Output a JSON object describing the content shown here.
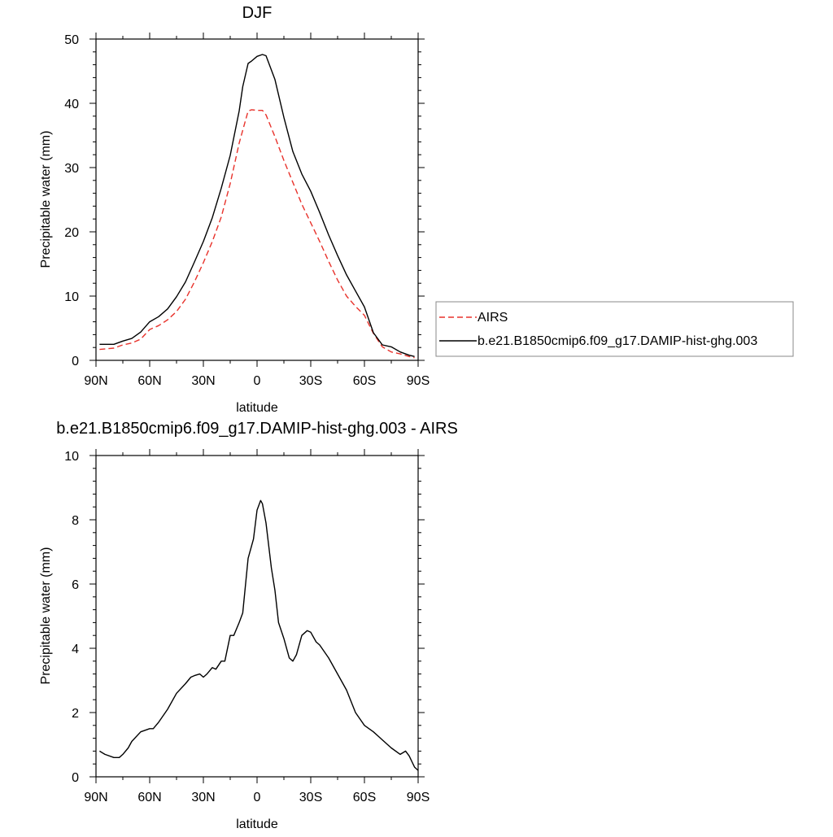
{
  "chart_data": [
    {
      "type": "line",
      "title": "DJF",
      "xlabel": "latitude",
      "ylabel": "Precipitable water (mm)",
      "xlim": [
        -90,
        90
      ],
      "ylim": [
        0,
        50
      ],
      "x_direction": "north-to-south",
      "xticks": [
        {
          "value": -90,
          "label": "90N"
        },
        {
          "value": -60,
          "label": "60N"
        },
        {
          "value": -30,
          "label": "30N"
        },
        {
          "value": 0,
          "label": "0"
        },
        {
          "value": 30,
          "label": "30S"
        },
        {
          "value": 60,
          "label": "60S"
        },
        {
          "value": 90,
          "label": "90S"
        }
      ],
      "yticks": [
        0,
        10,
        20,
        30,
        40,
        50
      ],
      "grid": false,
      "legend": {
        "placement": "right",
        "entries": [
          "AIRS",
          "b.e21.B1850cmip6.f09_g17.DAMIP-hist-ghg.003"
        ]
      },
      "series": [
        {
          "name": "AIRS",
          "color": "#e8322b",
          "dash": "dashed",
          "x": [
            -88,
            -80,
            -75,
            -70,
            -65,
            -60,
            -55,
            -50,
            -45,
            -40,
            -35,
            -30,
            -25,
            -20,
            -15,
            -10,
            -5,
            -3,
            0,
            3,
            5,
            10,
            15,
            20,
            25,
            30,
            35,
            40,
            45,
            50,
            55,
            60,
            65,
            70,
            75,
            80,
            85,
            88
          ],
          "values": [
            1.7,
            1.9,
            2.4,
            2.7,
            3.3,
            4.8,
            5.4,
            6.3,
            7.6,
            9.5,
            12.2,
            15.2,
            18.5,
            22.3,
            27.5,
            33.8,
            38.8,
            39.0,
            38.9,
            38.9,
            38.2,
            34.8,
            31.1,
            27.7,
            24.3,
            21.4,
            18.5,
            15.4,
            12.5,
            10.0,
            8.4,
            7.0,
            4.2,
            2.1,
            1.3,
            1.0,
            0.6,
            0.4
          ]
        },
        {
          "name": "b.e21.B1850cmip6.f09_g17.DAMIP-hist-ghg.003",
          "color": "#000000",
          "dash": "solid",
          "x": [
            -88,
            -80,
            -75,
            -70,
            -65,
            -60,
            -55,
            -50,
            -45,
            -40,
            -35,
            -30,
            -25,
            -20,
            -15,
            -10,
            -8,
            -5,
            -3,
            0,
            3,
            5,
            10,
            15,
            20,
            25,
            30,
            35,
            40,
            45,
            50,
            55,
            60,
            65,
            70,
            75,
            80,
            85,
            88
          ],
          "values": [
            2.5,
            2.5,
            3.0,
            3.4,
            4.4,
            6.0,
            6.8,
            8.0,
            9.9,
            12.2,
            15.3,
            18.5,
            22.2,
            26.8,
            31.9,
            38.8,
            42.6,
            46.2,
            46.6,
            47.3,
            47.6,
            47.4,
            43.7,
            37.8,
            32.5,
            29.0,
            26.3,
            23.0,
            19.5,
            16.3,
            13.3,
            10.8,
            8.3,
            4.3,
            2.4,
            2.1,
            1.3,
            0.8,
            0.6
          ]
        }
      ]
    },
    {
      "type": "line",
      "title": "b.e21.B1850cmip6.f09_g17.DAMIP-hist-ghg.003 - AIRS",
      "xlabel": "latitude",
      "ylabel": "Precipitable water (mm)",
      "xlim": [
        -90,
        90
      ],
      "ylim": [
        0,
        10
      ],
      "x_direction": "north-to-south",
      "xticks": [
        {
          "value": -90,
          "label": "90N"
        },
        {
          "value": -60,
          "label": "60N"
        },
        {
          "value": -30,
          "label": "30N"
        },
        {
          "value": 0,
          "label": "0"
        },
        {
          "value": 30,
          "label": "30S"
        },
        {
          "value": 60,
          "label": "60S"
        },
        {
          "value": 90,
          "label": "90S"
        }
      ],
      "yticks": [
        0,
        2,
        4,
        6,
        8,
        10
      ],
      "grid": false,
      "series": [
        {
          "color": "#000000",
          "dash": "solid",
          "x": [
            -88,
            -85,
            -80,
            -77,
            -75,
            -72,
            -70,
            -65,
            -60,
            -58,
            -55,
            -50,
            -45,
            -40,
            -37,
            -35,
            -32,
            -30,
            -28,
            -25,
            -23,
            -20,
            -18,
            -15,
            -13,
            -10,
            -8,
            -5,
            -2,
            0,
            2,
            3,
            5,
            8,
            10,
            12,
            15,
            18,
            20,
            22,
            25,
            28,
            30,
            33,
            35,
            40,
            45,
            50,
            55,
            60,
            65,
            68,
            70,
            75,
            80,
            83,
            85,
            88,
            90
          ],
          "values": [
            0.8,
            0.7,
            0.6,
            0.6,
            0.7,
            0.9,
            1.1,
            1.4,
            1.5,
            1.5,
            1.7,
            2.1,
            2.6,
            2.9,
            3.1,
            3.15,
            3.2,
            3.1,
            3.2,
            3.4,
            3.35,
            3.6,
            3.6,
            4.4,
            4.4,
            4.8,
            5.1,
            6.8,
            7.4,
            8.3,
            8.6,
            8.5,
            7.9,
            6.5,
            5.8,
            4.8,
            4.3,
            3.7,
            3.6,
            3.8,
            4.4,
            4.55,
            4.5,
            4.2,
            4.1,
            3.7,
            3.2,
            2.7,
            2.0,
            1.6,
            1.4,
            1.25,
            1.15,
            0.9,
            0.7,
            0.8,
            0.65,
            0.3,
            0.2
          ]
        }
      ]
    }
  ]
}
